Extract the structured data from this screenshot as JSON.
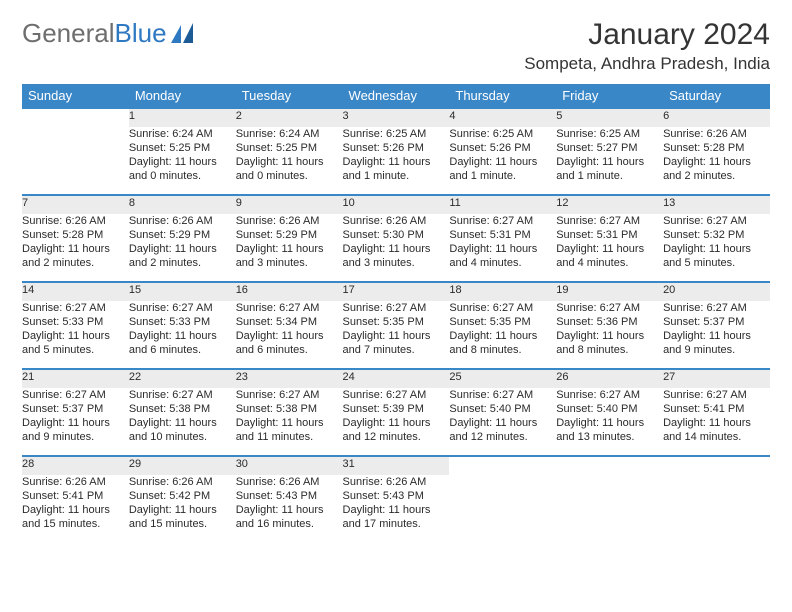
{
  "logo": {
    "text1": "General",
    "text2": "Blue"
  },
  "title": "January 2024",
  "location": "Sompeta, Andhra Pradesh, India",
  "colors": {
    "header_bg": "#3a87c8",
    "header_text": "#ffffff",
    "daynum_bg": "#ececec",
    "row_divider": "#3a87c8",
    "body_text": "#2b2b2b",
    "daynum_text": "#666666",
    "logo_gray": "#6e6e6e",
    "logo_blue": "#2f79c2"
  },
  "dayHeaders": [
    "Sunday",
    "Monday",
    "Tuesday",
    "Wednesday",
    "Thursday",
    "Friday",
    "Saturday"
  ],
  "weeks": [
    [
      {
        "n": "",
        "sr": "",
        "ss": "",
        "dl": ""
      },
      {
        "n": "1",
        "sr": "Sunrise: 6:24 AM",
        "ss": "Sunset: 5:25 PM",
        "dl": "Daylight: 11 hours and 0 minutes."
      },
      {
        "n": "2",
        "sr": "Sunrise: 6:24 AM",
        "ss": "Sunset: 5:25 PM",
        "dl": "Daylight: 11 hours and 0 minutes."
      },
      {
        "n": "3",
        "sr": "Sunrise: 6:25 AM",
        "ss": "Sunset: 5:26 PM",
        "dl": "Daylight: 11 hours and 1 minute."
      },
      {
        "n": "4",
        "sr": "Sunrise: 6:25 AM",
        "ss": "Sunset: 5:26 PM",
        "dl": "Daylight: 11 hours and 1 minute."
      },
      {
        "n": "5",
        "sr": "Sunrise: 6:25 AM",
        "ss": "Sunset: 5:27 PM",
        "dl": "Daylight: 11 hours and 1 minute."
      },
      {
        "n": "6",
        "sr": "Sunrise: 6:26 AM",
        "ss": "Sunset: 5:28 PM",
        "dl": "Daylight: 11 hours and 2 minutes."
      }
    ],
    [
      {
        "n": "7",
        "sr": "Sunrise: 6:26 AM",
        "ss": "Sunset: 5:28 PM",
        "dl": "Daylight: 11 hours and 2 minutes."
      },
      {
        "n": "8",
        "sr": "Sunrise: 6:26 AM",
        "ss": "Sunset: 5:29 PM",
        "dl": "Daylight: 11 hours and 2 minutes."
      },
      {
        "n": "9",
        "sr": "Sunrise: 6:26 AM",
        "ss": "Sunset: 5:29 PM",
        "dl": "Daylight: 11 hours and 3 minutes."
      },
      {
        "n": "10",
        "sr": "Sunrise: 6:26 AM",
        "ss": "Sunset: 5:30 PM",
        "dl": "Daylight: 11 hours and 3 minutes."
      },
      {
        "n": "11",
        "sr": "Sunrise: 6:27 AM",
        "ss": "Sunset: 5:31 PM",
        "dl": "Daylight: 11 hours and 4 minutes."
      },
      {
        "n": "12",
        "sr": "Sunrise: 6:27 AM",
        "ss": "Sunset: 5:31 PM",
        "dl": "Daylight: 11 hours and 4 minutes."
      },
      {
        "n": "13",
        "sr": "Sunrise: 6:27 AM",
        "ss": "Sunset: 5:32 PM",
        "dl": "Daylight: 11 hours and 5 minutes."
      }
    ],
    [
      {
        "n": "14",
        "sr": "Sunrise: 6:27 AM",
        "ss": "Sunset: 5:33 PM",
        "dl": "Daylight: 11 hours and 5 minutes."
      },
      {
        "n": "15",
        "sr": "Sunrise: 6:27 AM",
        "ss": "Sunset: 5:33 PM",
        "dl": "Daylight: 11 hours and 6 minutes."
      },
      {
        "n": "16",
        "sr": "Sunrise: 6:27 AM",
        "ss": "Sunset: 5:34 PM",
        "dl": "Daylight: 11 hours and 6 minutes."
      },
      {
        "n": "17",
        "sr": "Sunrise: 6:27 AM",
        "ss": "Sunset: 5:35 PM",
        "dl": "Daylight: 11 hours and 7 minutes."
      },
      {
        "n": "18",
        "sr": "Sunrise: 6:27 AM",
        "ss": "Sunset: 5:35 PM",
        "dl": "Daylight: 11 hours and 8 minutes."
      },
      {
        "n": "19",
        "sr": "Sunrise: 6:27 AM",
        "ss": "Sunset: 5:36 PM",
        "dl": "Daylight: 11 hours and 8 minutes."
      },
      {
        "n": "20",
        "sr": "Sunrise: 6:27 AM",
        "ss": "Sunset: 5:37 PM",
        "dl": "Daylight: 11 hours and 9 minutes."
      }
    ],
    [
      {
        "n": "21",
        "sr": "Sunrise: 6:27 AM",
        "ss": "Sunset: 5:37 PM",
        "dl": "Daylight: 11 hours and 9 minutes."
      },
      {
        "n": "22",
        "sr": "Sunrise: 6:27 AM",
        "ss": "Sunset: 5:38 PM",
        "dl": "Daylight: 11 hours and 10 minutes."
      },
      {
        "n": "23",
        "sr": "Sunrise: 6:27 AM",
        "ss": "Sunset: 5:38 PM",
        "dl": "Daylight: 11 hours and 11 minutes."
      },
      {
        "n": "24",
        "sr": "Sunrise: 6:27 AM",
        "ss": "Sunset: 5:39 PM",
        "dl": "Daylight: 11 hours and 12 minutes."
      },
      {
        "n": "25",
        "sr": "Sunrise: 6:27 AM",
        "ss": "Sunset: 5:40 PM",
        "dl": "Daylight: 11 hours and 12 minutes."
      },
      {
        "n": "26",
        "sr": "Sunrise: 6:27 AM",
        "ss": "Sunset: 5:40 PM",
        "dl": "Daylight: 11 hours and 13 minutes."
      },
      {
        "n": "27",
        "sr": "Sunrise: 6:27 AM",
        "ss": "Sunset: 5:41 PM",
        "dl": "Daylight: 11 hours and 14 minutes."
      }
    ],
    [
      {
        "n": "28",
        "sr": "Sunrise: 6:26 AM",
        "ss": "Sunset: 5:41 PM",
        "dl": "Daylight: 11 hours and 15 minutes."
      },
      {
        "n": "29",
        "sr": "Sunrise: 6:26 AM",
        "ss": "Sunset: 5:42 PM",
        "dl": "Daylight: 11 hours and 15 minutes."
      },
      {
        "n": "30",
        "sr": "Sunrise: 6:26 AM",
        "ss": "Sunset: 5:43 PM",
        "dl": "Daylight: 11 hours and 16 minutes."
      },
      {
        "n": "31",
        "sr": "Sunrise: 6:26 AM",
        "ss": "Sunset: 5:43 PM",
        "dl": "Daylight: 11 hours and 17 minutes."
      },
      {
        "n": "",
        "sr": "",
        "ss": "",
        "dl": ""
      },
      {
        "n": "",
        "sr": "",
        "ss": "",
        "dl": ""
      },
      {
        "n": "",
        "sr": "",
        "ss": "",
        "dl": ""
      }
    ]
  ]
}
